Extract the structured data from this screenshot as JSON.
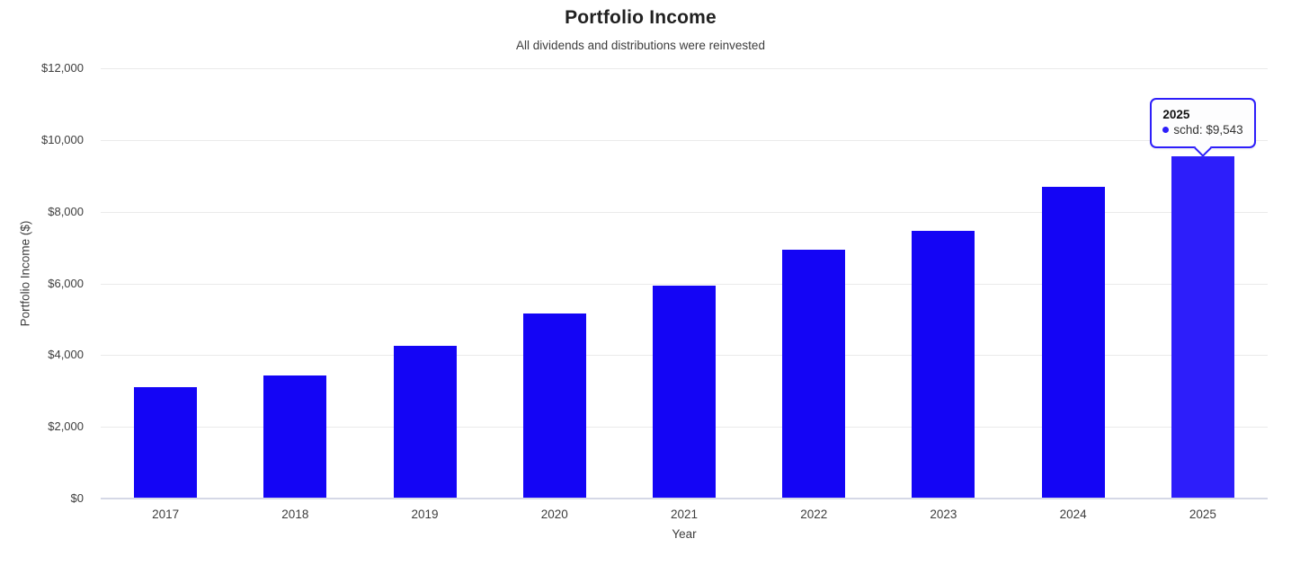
{
  "chart": {
    "title": "Portfolio Income",
    "subtitle": "All dividends and distributions were reinvested",
    "xlabel": "Year",
    "ylabel": "Portfolio Income ($)"
  },
  "tooltip": {
    "title": "2025",
    "series_label": "schd",
    "value": "$9,543",
    "text": "schd: $9,543"
  },
  "chart_data": {
    "type": "bar",
    "title": "Portfolio Income",
    "subtitle": "All dividends and distributions were reinvested",
    "xlabel": "Year",
    "ylabel": "Portfolio Income ($)",
    "categories": [
      "2017",
      "2018",
      "2019",
      "2020",
      "2021",
      "2022",
      "2023",
      "2024",
      "2025"
    ],
    "series": [
      {
        "name": "schd",
        "values": [
          3100,
          3420,
          4250,
          5150,
          5930,
          6950,
          7470,
          8700,
          9543
        ]
      }
    ],
    "ylim": [
      0,
      12000
    ],
    "yticks": [
      {
        "value": 0,
        "label": "$0"
      },
      {
        "value": 2000,
        "label": "$2,000"
      },
      {
        "value": 4000,
        "label": "$4,000"
      },
      {
        "value": 6000,
        "label": "$6,000"
      },
      {
        "value": 8000,
        "label": "$8,000"
      },
      {
        "value": 10000,
        "label": "$10,000"
      },
      {
        "value": 12000,
        "label": "$12,000"
      }
    ],
    "grid": true,
    "legend_position": "none",
    "highlighted_index": 8,
    "highlighted_value_label": "$9,543",
    "colors": {
      "bar": "#1405f5",
      "bar_highlight": "#2d1efa",
      "tooltip_border": "#2d1efa",
      "gridline": "#eaeaea",
      "axis_line": "#d5d8e6"
    }
  }
}
